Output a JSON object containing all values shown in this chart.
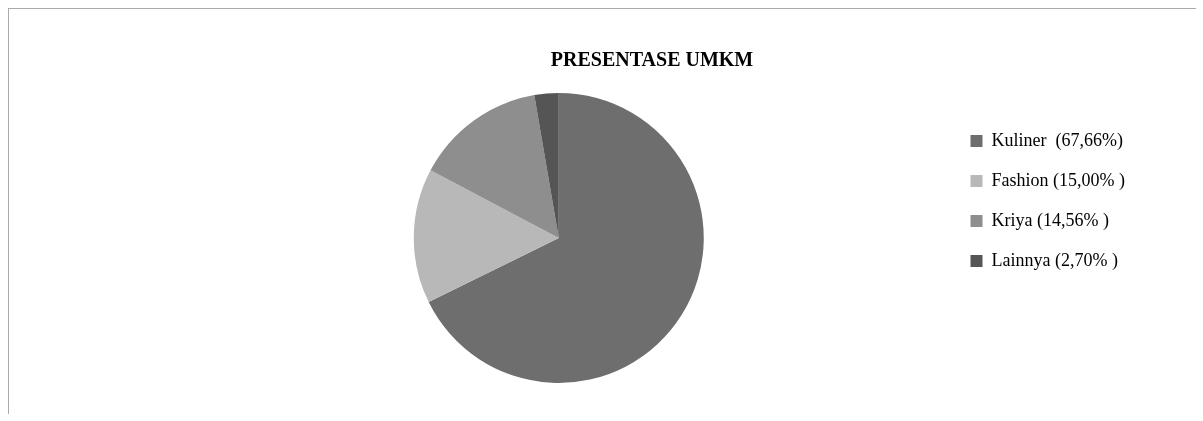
{
  "chart_data": {
    "type": "pie",
    "title": "PRESENTASE UMKM",
    "categories": [
      "Kuliner  (67,66%)",
      "Fashion (15,00% )",
      "Kriya (14,56% )",
      "Lainnya (2,70% )"
    ],
    "values": [
      67.66,
      15.0,
      14.56,
      2.7
    ],
    "colors": [
      "#6e6e6e",
      "#b8b8b8",
      "#8e8e8e",
      "#555555"
    ],
    "legend": "right"
  }
}
